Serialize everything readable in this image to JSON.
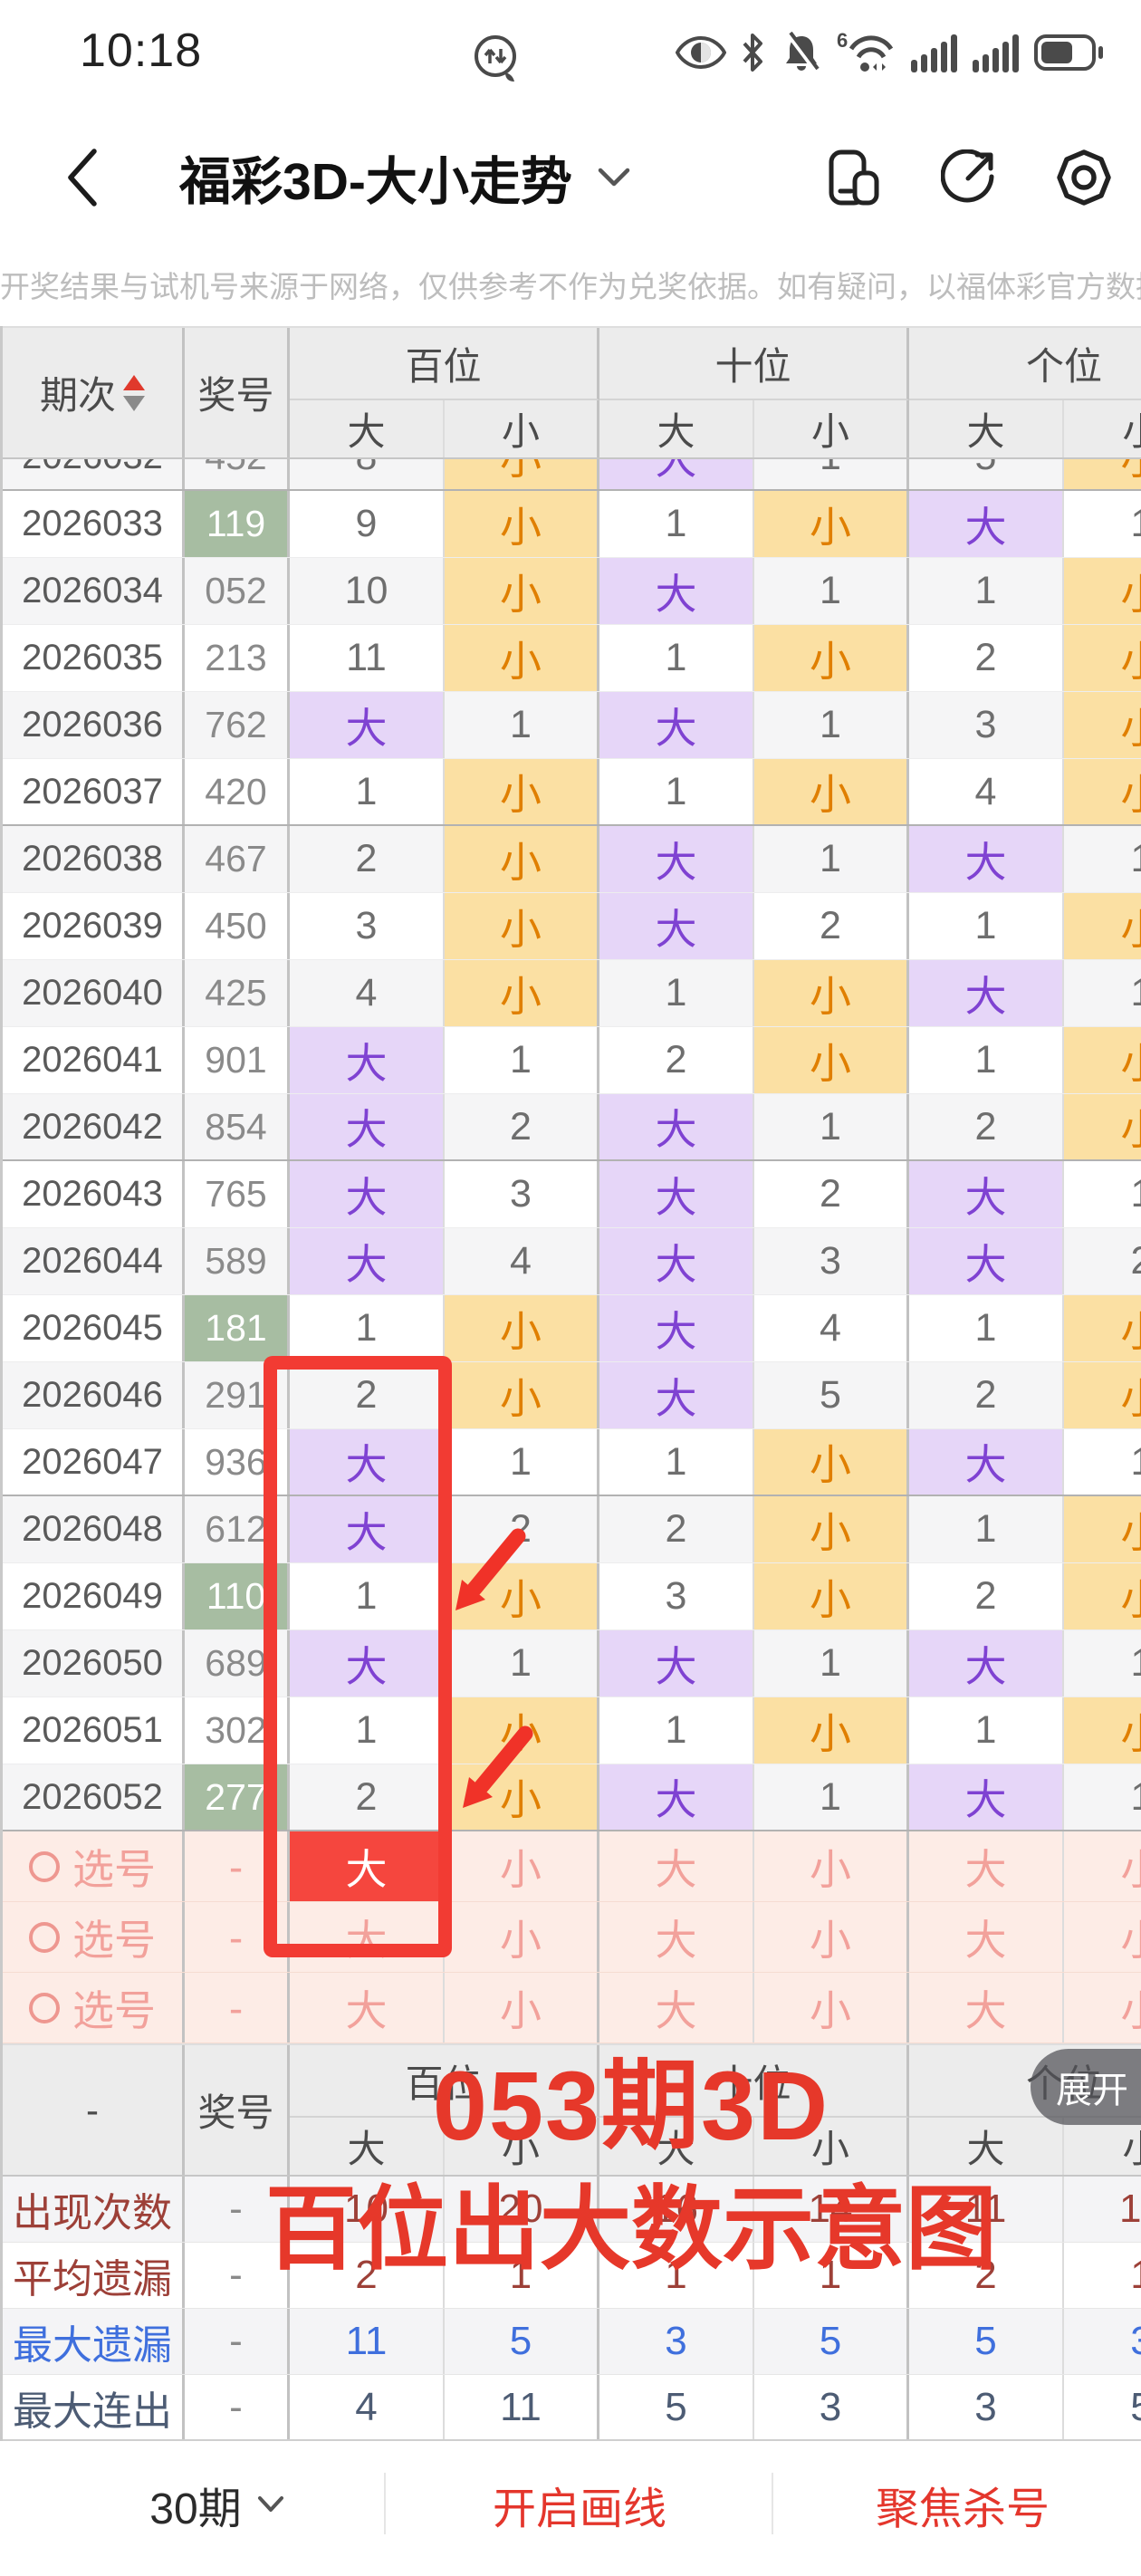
{
  "status_bar": {
    "time": "10:18"
  },
  "nav": {
    "title": "福彩3D-大小走势"
  },
  "disclaimer": "开奖结果与试机号来源于网络，仅供参考不作为兑奖依据。如有疑问，以福体彩官方数据为准。",
  "table": {
    "header": {
      "period": "期次",
      "number": "奖号",
      "groups": [
        "百位",
        "十位",
        "个位"
      ],
      "subs": [
        "大",
        "小"
      ]
    },
    "header2_period": "-",
    "rows": [
      {
        "period": "2026032",
        "number": "452",
        "green": false,
        "cells": [
          "8",
          "小",
          "大",
          "1",
          "5",
          "小"
        ]
      },
      {
        "period": "2026033",
        "number": "119",
        "green": true,
        "cells": [
          "9",
          "小",
          "1",
          "小",
          "大",
          "1"
        ]
      },
      {
        "period": "2026034",
        "number": "052",
        "green": false,
        "cells": [
          "10",
          "小",
          "大",
          "1",
          "1",
          "小"
        ]
      },
      {
        "period": "2026035",
        "number": "213",
        "green": false,
        "cells": [
          "11",
          "小",
          "1",
          "小",
          "2",
          "小"
        ]
      },
      {
        "period": "2026036",
        "number": "762",
        "green": false,
        "cells": [
          "大",
          "1",
          "大",
          "1",
          "3",
          "小"
        ]
      },
      {
        "period": "2026037",
        "number": "420",
        "green": false,
        "cells": [
          "1",
          "小",
          "1",
          "小",
          "4",
          "小"
        ]
      },
      {
        "period": "2026038",
        "number": "467",
        "green": false,
        "cells": [
          "2",
          "小",
          "大",
          "1",
          "大",
          "1"
        ]
      },
      {
        "period": "2026039",
        "number": "450",
        "green": false,
        "cells": [
          "3",
          "小",
          "大",
          "2",
          "1",
          "小"
        ]
      },
      {
        "period": "2026040",
        "number": "425",
        "green": false,
        "cells": [
          "4",
          "小",
          "1",
          "小",
          "大",
          "1"
        ]
      },
      {
        "period": "2026041",
        "number": "901",
        "green": false,
        "cells": [
          "大",
          "1",
          "2",
          "小",
          "1",
          "小"
        ]
      },
      {
        "period": "2026042",
        "number": "854",
        "green": false,
        "cells": [
          "大",
          "2",
          "大",
          "1",
          "2",
          "小"
        ]
      },
      {
        "period": "2026043",
        "number": "765",
        "green": false,
        "cells": [
          "大",
          "3",
          "大",
          "2",
          "大",
          "1"
        ]
      },
      {
        "period": "2026044",
        "number": "589",
        "green": false,
        "cells": [
          "大",
          "4",
          "大",
          "3",
          "大",
          "2"
        ]
      },
      {
        "period": "2026045",
        "number": "181",
        "green": true,
        "cells": [
          "1",
          "小",
          "大",
          "4",
          "1",
          "小"
        ]
      },
      {
        "period": "2026046",
        "number": "291",
        "green": false,
        "cells": [
          "2",
          "小",
          "大",
          "5",
          "2",
          "小"
        ]
      },
      {
        "period": "2026047",
        "number": "936",
        "green": false,
        "cells": [
          "大",
          "1",
          "1",
          "小",
          "大",
          "1"
        ]
      },
      {
        "period": "2026048",
        "number": "612",
        "green": false,
        "cells": [
          "大",
          "2",
          "2",
          "小",
          "1",
          "小"
        ]
      },
      {
        "period": "2026049",
        "number": "110",
        "green": true,
        "cells": [
          "1",
          "小",
          "3",
          "小",
          "2",
          "小"
        ]
      },
      {
        "period": "2026050",
        "number": "689",
        "green": false,
        "cells": [
          "大",
          "1",
          "大",
          "1",
          "大",
          "1"
        ]
      },
      {
        "period": "2026051",
        "number": "302",
        "green": false,
        "cells": [
          "1",
          "小",
          "1",
          "小",
          "1",
          "小"
        ]
      },
      {
        "period": "2026052",
        "number": "277",
        "green": true,
        "cells": [
          "2",
          "小",
          "大",
          "1",
          "大",
          "1"
        ]
      }
    ],
    "pick_rows": [
      {
        "label": "选号",
        "number": "-",
        "cells": [
          "大",
          "小",
          "大",
          "小",
          "大",
          "小"
        ],
        "selected": 0
      },
      {
        "label": "选号",
        "number": "-",
        "cells": [
          "大",
          "小",
          "大",
          "小",
          "大",
          "小"
        ],
        "selected": null
      },
      {
        "label": "选号",
        "number": "-",
        "cells": [
          "大",
          "小",
          "大",
          "小",
          "大",
          "小"
        ],
        "selected": null
      }
    ],
    "stats": [
      {
        "label": "出现次数",
        "number": "-",
        "values": [
          "10",
          "20",
          "16",
          "14",
          "11",
          "19"
        ],
        "style": "maroon"
      },
      {
        "label": "平均遗漏",
        "number": "-",
        "values": [
          "2",
          "1",
          "1",
          "1",
          "2",
          "1"
        ],
        "style": "maroon"
      },
      {
        "label": "最大遗漏",
        "number": "-",
        "values": [
          "11",
          "5",
          "3",
          "5",
          "5",
          "3"
        ],
        "style": "blue"
      },
      {
        "label": "最大连出",
        "number": "-",
        "values": [
          "4",
          "11",
          "5",
          "3",
          "3",
          "5"
        ],
        "style": "slate"
      }
    ]
  },
  "expand_button": "展开",
  "overlay": {
    "line1": "053期3D",
    "line2": "百位出大数示意图"
  },
  "footer": {
    "periods": "30期",
    "action1": "开启画线",
    "action2": "聚焦杀号"
  },
  "colors": {
    "big_bg": "#e6d6f8",
    "big_text": "#7f42d2",
    "small_bg": "#fbe0a3",
    "small_text": "#e07f00",
    "green_bg": "#a7bda2",
    "pick_bg": "#fdece6",
    "pick_text": "#f2a19b",
    "selected_bg": "#f5463e",
    "annotation_red": "#e6382a",
    "highlight_border": "#f23b33",
    "stat_maroon": "#9d4038",
    "stat_blue": "#3f6fdd",
    "stat_slate": "#4d5c74"
  }
}
